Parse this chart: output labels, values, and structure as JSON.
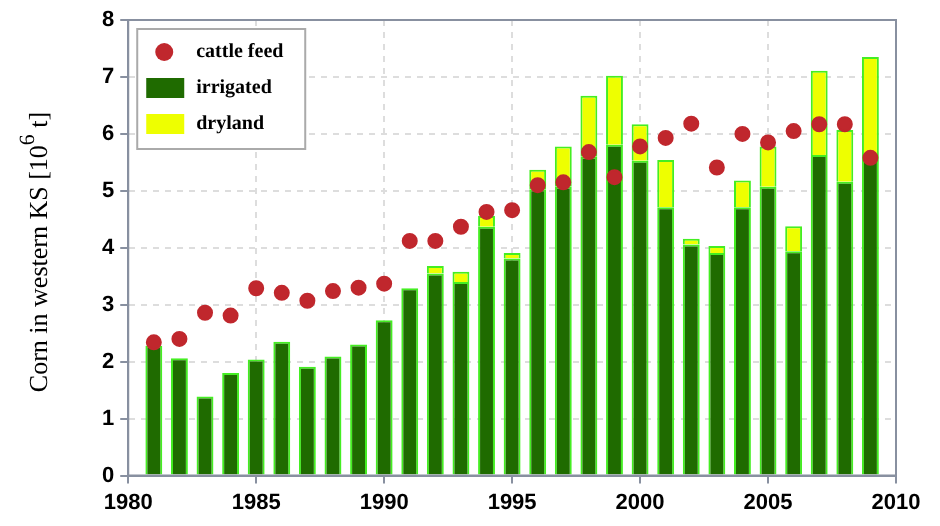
{
  "chart_data": {
    "type": "bar",
    "ylabel": "Corn in western KS [10$^{6}$ t]",
    "stacked": true,
    "grid": true,
    "legend": "top left",
    "marker": "circle",
    "x": [
      1981,
      1982,
      1983,
      1984,
      1985,
      1986,
      1987,
      1988,
      1989,
      1990,
      1991,
      1992,
      1993,
      1994,
      1995,
      1996,
      1997,
      1998,
      1999,
      2000,
      2001,
      2002,
      2003,
      2004,
      2005,
      2006,
      2007,
      2008,
      2009
    ],
    "xlim": [
      1980,
      2010
    ],
    "xticks": [
      1980,
      1985,
      1990,
      1995,
      2000,
      2005,
      2010
    ],
    "ylim": [
      0,
      8
    ],
    "yticks": [
      0,
      1,
      2,
      3,
      4,
      5,
      6,
      7,
      8
    ],
    "series": [
      {
        "name": "cattle feed",
        "type": "scatter",
        "color": "#c0272d",
        "values": [
          2.34,
          2.4,
          2.86,
          2.81,
          3.29,
          3.21,
          3.07,
          3.24,
          3.3,
          3.37,
          4.12,
          4.12,
          4.37,
          4.63,
          4.66,
          5.1,
          5.15,
          5.68,
          5.24,
          5.78,
          5.93,
          6.18,
          5.41,
          6.0,
          5.85,
          6.05,
          6.17,
          6.17,
          5.58
        ]
      },
      {
        "name": "irrigated",
        "color": "#1f6b00",
        "values": [
          2.28,
          2.06,
          1.39,
          1.8,
          2.04,
          2.35,
          1.91,
          2.09,
          2.3,
          2.73,
          3.29,
          3.55,
          3.4,
          4.37,
          3.81,
          5.03,
          5.07,
          5.6,
          5.81,
          5.53,
          4.71,
          4.06,
          3.91,
          4.71,
          5.07,
          3.94,
          5.63,
          5.16,
          5.54
        ]
      },
      {
        "name": "dryland",
        "color": "#eeff00",
        "values": [
          0,
          0,
          0,
          0,
          0,
          0,
          0,
          0,
          0,
          0,
          0,
          0.13,
          0.18,
          0.19,
          0.1,
          0.34,
          0.71,
          1.07,
          1.21,
          0.64,
          0.83,
          0.1,
          0.12,
          0.47,
          0.71,
          0.44,
          1.48,
          0.91,
          1.81
        ]
      }
    ]
  }
}
